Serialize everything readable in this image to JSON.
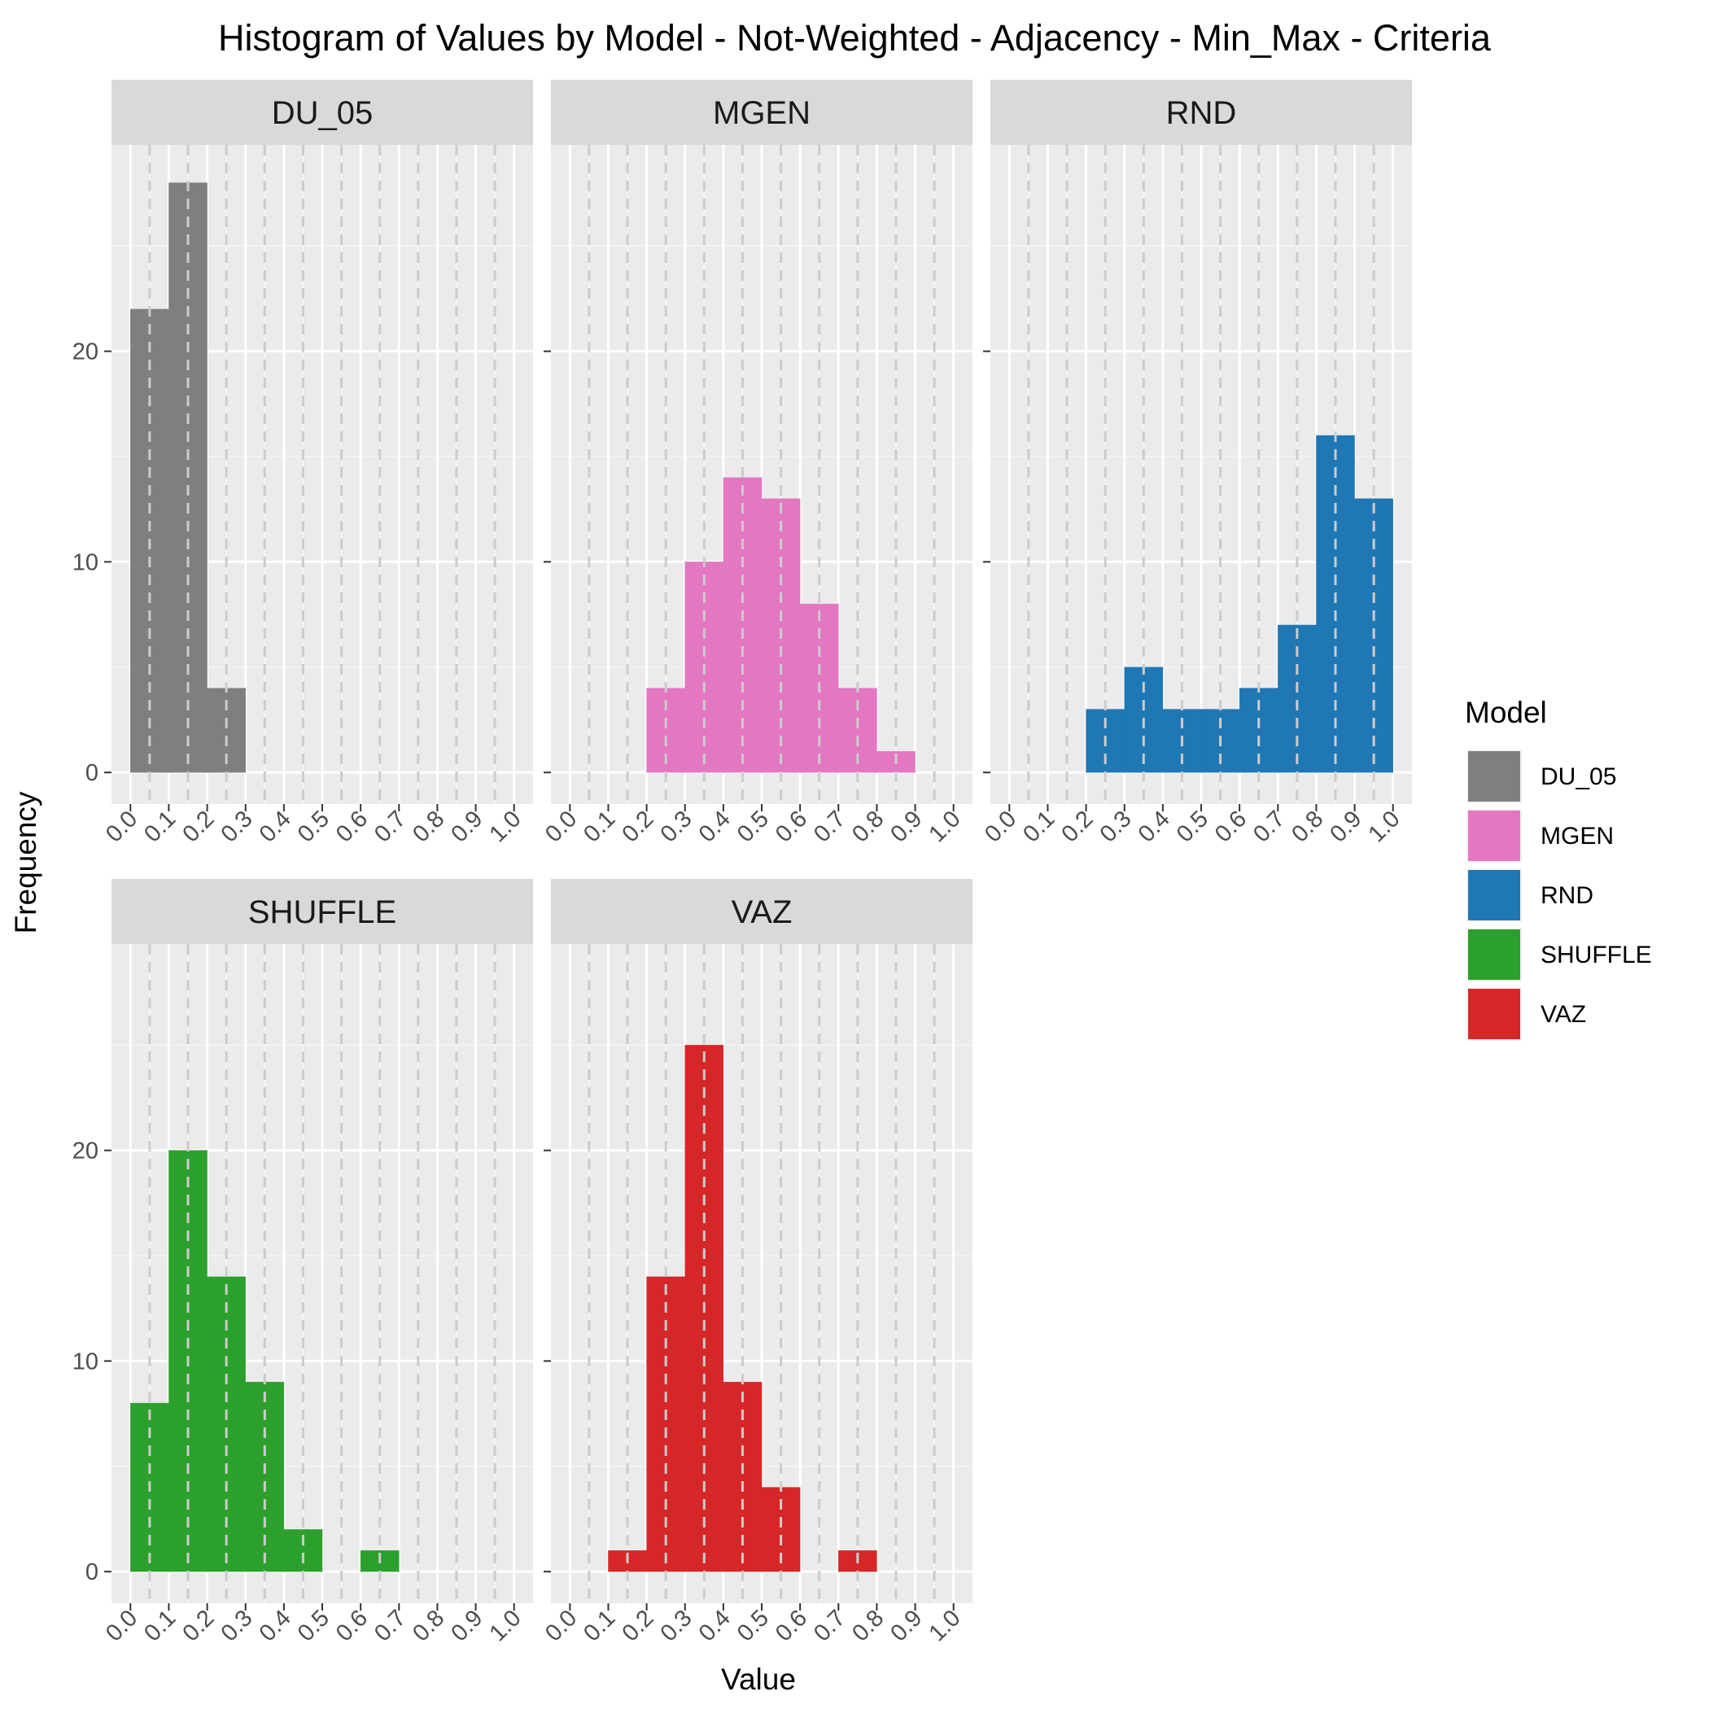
{
  "chart_data": {
    "type": "bar",
    "title": "Histogram of Values by Model - Not-Weighted - Adjacency - Min_Max - Criteria",
    "xlabel": "Value",
    "ylabel": "Frequency",
    "xlim": [
      0,
      1
    ],
    "ylim": [
      0,
      28
    ],
    "x_ticks": [
      "0.0",
      "0.1",
      "0.2",
      "0.3",
      "0.4",
      "0.5",
      "0.6",
      "0.7",
      "0.8",
      "0.9",
      "1.0"
    ],
    "y_ticks": [
      "0",
      "10",
      "20"
    ],
    "bin_width": 0.1,
    "bins": [
      [
        0.0,
        0.1
      ],
      [
        0.1,
        0.2
      ],
      [
        0.2,
        0.3
      ],
      [
        0.3,
        0.4
      ],
      [
        0.4,
        0.5
      ],
      [
        0.5,
        0.6
      ],
      [
        0.6,
        0.7
      ],
      [
        0.7,
        0.8
      ],
      [
        0.8,
        0.9
      ],
      [
        0.9,
        1.0
      ]
    ],
    "grid": true,
    "vertical_reference_lines": "dashed at each 0.05 bin center",
    "legend": {
      "title": "Model",
      "placement": "right",
      "items": [
        {
          "label": "DU_05",
          "color": "#7f7f7f"
        },
        {
          "label": "MGEN",
          "color": "#e377c2"
        },
        {
          "label": "RND",
          "color": "#1f77b4"
        },
        {
          "label": "SHUFFLE",
          "color": "#2ca02c"
        },
        {
          "label": "VAZ",
          "color": "#d62728"
        }
      ]
    },
    "panels": [
      {
        "name": "DU_05",
        "color": "#7f7f7f",
        "values": [
          22,
          28,
          4,
          0,
          0,
          0,
          0,
          0,
          0,
          0
        ]
      },
      {
        "name": "MGEN",
        "color": "#e377c2",
        "values": [
          0,
          0,
          4,
          10,
          14,
          13,
          8,
          4,
          1,
          0
        ]
      },
      {
        "name": "RND",
        "color": "#1f77b4",
        "values": [
          0,
          0,
          3,
          5,
          3,
          3,
          4,
          7,
          16,
          13
        ]
      },
      {
        "name": "SHUFFLE",
        "color": "#2ca02c",
        "values": [
          8,
          20,
          14,
          9,
          2,
          0,
          1,
          0,
          0,
          0
        ]
      },
      {
        "name": "VAZ",
        "color": "#d62728",
        "values": [
          0,
          1,
          14,
          25,
          9,
          4,
          0,
          1,
          0,
          0
        ]
      }
    ]
  }
}
